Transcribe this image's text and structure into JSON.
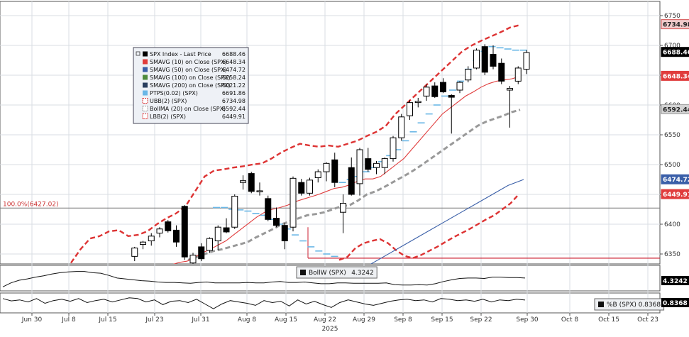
{
  "chart_data": {
    "type": "candlestick",
    "price_axis": {
      "min": 6310,
      "max": 6760,
      "ticks": [
        6350,
        6400,
        6450,
        6500,
        6550,
        6600,
        6650,
        6700,
        6750
      ]
    },
    "x_axis": {
      "labels": [
        "Jun 30",
        "Jul 8",
        "Jul 15",
        "Jul 23",
        "Jul 31",
        "Aug 8",
        "Aug 15",
        "Aug 22",
        "Aug 29",
        "Sep 8",
        "Sep 15",
        "Sep 22",
        "Sep 30",
        "Oct 8",
        "Oct 15",
        "Oct 23"
      ],
      "year_label": "2025"
    },
    "legend": [
      {
        "name": "SPX Index - Last Price",
        "value": "6688.46",
        "color": "#000000"
      },
      {
        "name": "SMAVG (10)  on Close (SPX)",
        "value": "6648.34",
        "color": "#e03c3c"
      },
      {
        "name": "SMAVG (50)  on Close (SPX)",
        "value": "6474.72",
        "color": "#3a5fa8"
      },
      {
        "name": "SMAVG (100)  on Close (SPX)",
        "value": "6258.24",
        "color": "#4e8a3c"
      },
      {
        "name": "SMAVG (200)  on Close (SPX)",
        "value": "6021.22",
        "color": "#2a3f5e"
      },
      {
        "name": "PTPS(0.02) (SPX)",
        "value": "6691.86",
        "color": "#6ab7e6"
      },
      {
        "name": "UBB(2) (SPX)",
        "value": "6734.98",
        "color": "#d33"
      },
      {
        "name": "BollMA (20)  on Close (SPX)",
        "value": "6592.44",
        "color": "#999999"
      },
      {
        "name": "LBB(2) (SPX)",
        "value": "6449.91",
        "color": "#d33"
      }
    ],
    "price_labels": [
      {
        "text": "6734.98",
        "value": 6734.98,
        "bg": "#f1cccc",
        "fg": "#222222",
        "border": "#d55555"
      },
      {
        "text": "6688.46",
        "value": 6688.46,
        "bg": "#000000",
        "fg": "#ffffff",
        "border": "#000000"
      },
      {
        "text": "6648.34",
        "value": 6648.34,
        "bg": "#e03c3c",
        "fg": "#ffffff",
        "border": "#e03c3c"
      },
      {
        "text": "6592.44",
        "value": 6592.44,
        "bg": "#d4d4d4",
        "fg": "#222222",
        "border": "#999999"
      },
      {
        "text": "6474.72",
        "value": 6474.72,
        "bg": "#3a5fa8",
        "fg": "#ffffff",
        "border": "#3a5fa8"
      },
      {
        "text": "6449.91",
        "value": 6449.91,
        "bg": "#e03c3c",
        "fg": "#ffffff",
        "border": "#e03c3c"
      }
    ],
    "fib_label": "100.0%(6427.02)",
    "fib_value": 6427.02,
    "support_value": 6343,
    "candles": [
      {
        "d": "Jul 22",
        "o": 6346,
        "h": 6362,
        "l": 6338,
        "c": 6360
      },
      {
        "d": "Jul 23",
        "o": 6366,
        "h": 6372,
        "l": 6358,
        "c": 6370
      },
      {
        "d": "Jul 24",
        "o": 6372,
        "h": 6385,
        "l": 6364,
        "c": 6380
      },
      {
        "d": "Jul 25",
        "o": 6385,
        "h": 6395,
        "l": 6378,
        "c": 6392
      },
      {
        "d": "Jul 28",
        "o": 6404,
        "h": 6407,
        "l": 6386,
        "c": 6389
      },
      {
        "d": "Jul 29",
        "o": 6390,
        "h": 6398,
        "l": 6362,
        "c": 6370
      },
      {
        "d": "Jul 30",
        "o": 6430,
        "h": 6432,
        "l": 6340,
        "c": 6345
      },
      {
        "d": "Aug 4",
        "o": 6335,
        "h": 6352,
        "l": 6330,
        "c": 6348
      },
      {
        "d": "Aug 5",
        "o": 6362,
        "h": 6368,
        "l": 6338,
        "c": 6342
      },
      {
        "d": "Aug 6",
        "o": 6356,
        "h": 6378,
        "l": 6352,
        "c": 6376
      },
      {
        "d": "Aug 7",
        "o": 6372,
        "h": 6398,
        "l": 6357,
        "c": 6395
      },
      {
        "d": "Aug 8",
        "o": 6394,
        "h": 6410,
        "l": 6385,
        "c": 6387
      },
      {
        "d": "Aug 11",
        "o": 6395,
        "h": 6450,
        "l": 6392,
        "c": 6447
      },
      {
        "d": "Aug 12",
        "o": 6470,
        "h": 6482,
        "l": 6458,
        "c": 6473
      },
      {
        "d": "Aug 13",
        "o": 6485,
        "h": 6488,
        "l": 6452,
        "c": 6455
      },
      {
        "d": "Aug 14",
        "o": 6455,
        "h": 6470,
        "l": 6448,
        "c": 6456
      },
      {
        "d": "Aug 15",
        "o": 6443,
        "h": 6448,
        "l": 6405,
        "c": 6408
      },
      {
        "d": "Aug 18",
        "o": 6410,
        "h": 6428,
        "l": 6395,
        "c": 6398
      },
      {
        "d": "Aug 19",
        "o": 6398,
        "h": 6402,
        "l": 6358,
        "c": 6372
      },
      {
        "d": "Aug 20",
        "o": 6395,
        "h": 6480,
        "l": 6388,
        "c": 6477
      },
      {
        "d": "Aug 21",
        "o": 6470,
        "h": 6476,
        "l": 6448,
        "c": 6452
      },
      {
        "d": "Aug 22",
        "o": 6452,
        "h": 6478,
        "l": 6448,
        "c": 6474
      },
      {
        "d": "Aug 25",
        "o": 6478,
        "h": 6492,
        "l": 6470,
        "c": 6488
      },
      {
        "d": "Aug 26",
        "o": 6488,
        "h": 6504,
        "l": 6472,
        "c": 6502
      },
      {
        "d": "Aug 27",
        "o": 6508,
        "h": 6520,
        "l": 6462,
        "c": 6470
      },
      {
        "d": "Aug 28",
        "o": 6420,
        "h": 6450,
        "l": 6385,
        "c": 6435
      },
      {
        "d": "Aug 29",
        "o": 6495,
        "h": 6512,
        "l": 6448,
        "c": 6450
      },
      {
        "d": "Sep 2",
        "o": 6468,
        "h": 6528,
        "l": 6448,
        "c": 6525
      },
      {
        "d": "Sep 3",
        "o": 6510,
        "h": 6528,
        "l": 6488,
        "c": 6492
      },
      {
        "d": "Sep 4",
        "o": 6495,
        "h": 6506,
        "l": 6484,
        "c": 6502
      },
      {
        "d": "Sep 5",
        "o": 6495,
        "h": 6512,
        "l": 6484,
        "c": 6510
      },
      {
        "d": "Sep 8",
        "o": 6510,
        "h": 6548,
        "l": 6505,
        "c": 6545
      },
      {
        "d": "Sep 9",
        "o": 6545,
        "h": 6585,
        "l": 6540,
        "c": 6580
      },
      {
        "d": "Sep 10",
        "o": 6582,
        "h": 6608,
        "l": 6575,
        "c": 6604
      },
      {
        "d": "Sep 11",
        "o": 6604,
        "h": 6612,
        "l": 6596,
        "c": 6606
      },
      {
        "d": "Sep 12",
        "o": 6615,
        "h": 6635,
        "l": 6607,
        "c": 6630
      },
      {
        "d": "Sep 15",
        "o": 6632,
        "h": 6638,
        "l": 6612,
        "c": 6614
      },
      {
        "d": "Sep 16",
        "o": 6638,
        "h": 6645,
        "l": 6620,
        "c": 6622
      },
      {
        "d": "Sep 17",
        "o": 6616,
        "h": 6618,
        "l": 6552,
        "c": 6613
      },
      {
        "d": "Sep 18",
        "o": 6625,
        "h": 6640,
        "l": 6620,
        "c": 6638
      },
      {
        "d": "Sep 19",
        "o": 6642,
        "h": 6665,
        "l": 6638,
        "c": 6660
      },
      {
        "d": "Sep 22",
        "o": 6662,
        "h": 6695,
        "l": 6660,
        "c": 6692
      },
      {
        "d": "Sep 23",
        "o": 6698,
        "h": 6702,
        "l": 6650,
        "c": 6655
      },
      {
        "d": "Sep 24",
        "o": 6685,
        "h": 6700,
        "l": 6660,
        "c": 6665
      },
      {
        "d": "Sep 25",
        "o": 6670,
        "h": 6678,
        "l": 6635,
        "c": 6640
      },
      {
        "d": "Sep 26",
        "o": 6625,
        "h": 6632,
        "l": 6562,
        "c": 6628
      },
      {
        "d": "Sep 29",
        "o": 6640,
        "h": 6665,
        "l": 6635,
        "c": 6662
      },
      {
        "d": "Sep 30",
        "o": 6660,
        "h": 6692,
        "l": 6652,
        "c": 6688
      }
    ],
    "boll_upper": [
      6335,
      6358,
      6376,
      6380,
      6388,
      6390,
      6380,
      6382,
      6388,
      6400,
      6410,
      6418,
      6430,
      6455,
      6480,
      6490,
      6492,
      6495,
      6497,
      6500,
      6502,
      6510,
      6520,
      6528,
      6535,
      6532,
      6530,
      6532,
      6530,
      6535,
      6540,
      6548,
      6555,
      6565,
      6585,
      6600,
      6615,
      6630,
      6645,
      6660,
      6675,
      6690,
      6700,
      6708,
      6715,
      6722,
      6730,
      6734
    ],
    "boll_mid": [
      6340,
      6345,
      6350,
      6355,
      6358,
      6362,
      6366,
      6370,
      6378,
      6385,
      6392,
      6400,
      6405,
      6410,
      6415,
      6417,
      6420,
      6425,
      6430,
      6432,
      6440,
      6450,
      6455,
      6462,
      6470,
      6478,
      6486,
      6495,
      6505,
      6515,
      6525,
      6535,
      6545,
      6555,
      6565,
      6572,
      6577,
      6582,
      6588,
      6592
    ],
    "boll_lower": [
      6340,
      6345,
      6360,
      6368,
      6372,
      6375,
      6368,
      6356,
      6347,
      6343,
      6348,
      6355,
      6362,
      6370,
      6378,
      6385,
      6392,
      6400,
      6408,
      6415,
      6425,
      6435,
      6450
    ],
    "sma10": [
      6332,
      6336,
      6338,
      6345,
      6352,
      6358,
      6365,
      6372,
      6382,
      6392,
      6402,
      6412,
      6420,
      6425,
      6428,
      6432,
      6438,
      6442,
      6446,
      6450,
      6455,
      6460,
      6462,
      6466,
      6472,
      6476,
      6476,
      6480,
      6490,
      6500,
      6510,
      6525,
      6540,
      6555,
      6570,
      6585,
      6595,
      6605,
      6615,
      6622,
      6630,
      6636,
      6640,
      6642,
      6644,
      6648
    ],
    "sma50": [
      6330,
      6345,
      6360,
      6375,
      6390,
      6405,
      6420,
      6435,
      6450,
      6465,
      6475
    ],
    "ptps": [
      6428,
      6428,
      6425,
      6424,
      6422,
      6418,
      6415,
      6408,
      6400,
      6392,
      6382,
      6372,
      6362,
      6355,
      6350,
      6346,
      6470,
      6475,
      6480,
      6488,
      6495,
      6505,
      6515,
      6525,
      6540,
      6555,
      6570,
      6585,
      6600,
      6615,
      6625,
      6640,
      6660,
      6675,
      6690,
      6698,
      6696,
      6694,
      6692,
      6692
    ],
    "bollw": {
      "label": "BollW (SPX)",
      "value": "4.3242",
      "series": [
        2.6,
        3.5,
        4.1,
        4.4,
        4.8,
        5.1,
        5.5,
        5.8,
        6.0,
        6.1,
        6.1,
        5.8,
        5.7,
        5.2,
        4.6,
        4.4,
        4.2,
        4.0,
        3.9,
        3.7,
        3.6,
        3.6,
        3.5,
        3.4,
        3.6,
        3.7,
        3.5,
        3.5,
        3.5,
        3.5,
        3.6,
        3.5,
        3.5,
        3.7,
        3.8,
        3.6,
        3.6,
        3.7,
        3.5,
        3.3,
        3.3,
        3.5,
        3.5,
        3.4,
        3.4,
        3.4,
        3.4,
        3.5,
        3.1,
        3.0,
        3.0,
        3.1,
        3.0,
        3.3,
        3.8,
        4.2,
        4.5,
        4.6,
        4.6,
        4.5,
        4.8,
        4.8,
        4.7,
        4.7,
        4.6
      ]
    },
    "pctb": {
      "label": "%B (SPX)",
      "value": "0.8368",
      "series": [
        0.95,
        0.78,
        0.85,
        0.7,
        0.95,
        0.6,
        0.8,
        0.9,
        0.75,
        0.95,
        0.65,
        0.8,
        0.9,
        0.7,
        0.85,
        1.0,
        0.95,
        0.7,
        0.85,
        0.5,
        0.75,
        0.8,
        0.65,
        0.9,
        0.55,
        0.2,
        0.55,
        0.8,
        0.7,
        0.6,
        0.45,
        0.8,
        0.65,
        0.75,
        0.4,
        0.85,
        0.55,
        0.75,
        0.5,
        0.3,
        0.65,
        0.85,
        0.7,
        0.55,
        0.45,
        0.6,
        0.75,
        0.85,
        0.9,
        0.8,
        0.85,
        0.7,
        0.95,
        0.9,
        0.8,
        0.85,
        0.75,
        0.9,
        0.7,
        0.85,
        0.8,
        0.9,
        0.84
      ]
    }
  }
}
